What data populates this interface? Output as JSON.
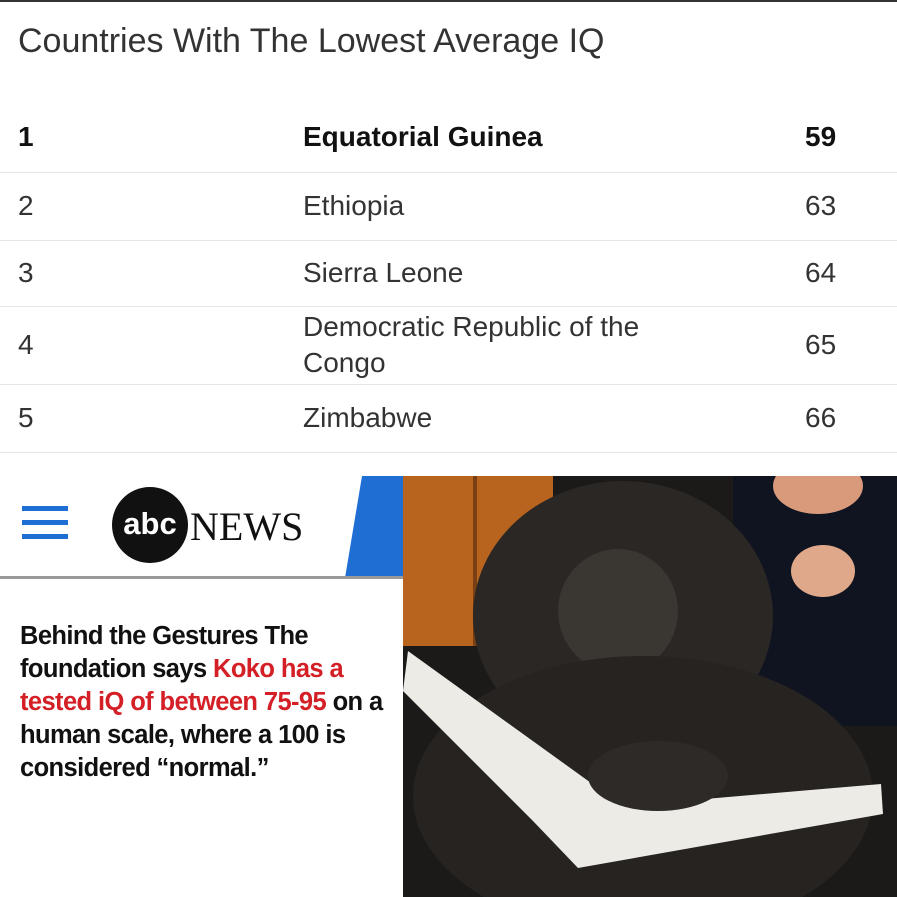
{
  "header": {
    "title": "Countries With The Lowest Average IQ"
  },
  "table": {
    "rows": [
      [
        1,
        "Equatorial Guinea",
        59
      ],
      [
        2,
        "Ethiopia",
        63
      ],
      [
        3,
        "Sierra Leone",
        64
      ],
      [
        4,
        "Democratic Republic of the Congo",
        65
      ],
      [
        5,
        "Zimbabwe",
        66
      ]
    ]
  },
  "news": {
    "logo": "abc",
    "brand": "NEWS",
    "caption": [
      "Behind the Gestures The foundation says ",
      "Koko has a tested iQ of between 75-95",
      " on a human scale, where a 100 is considered “normal.”"
    ]
  }
}
